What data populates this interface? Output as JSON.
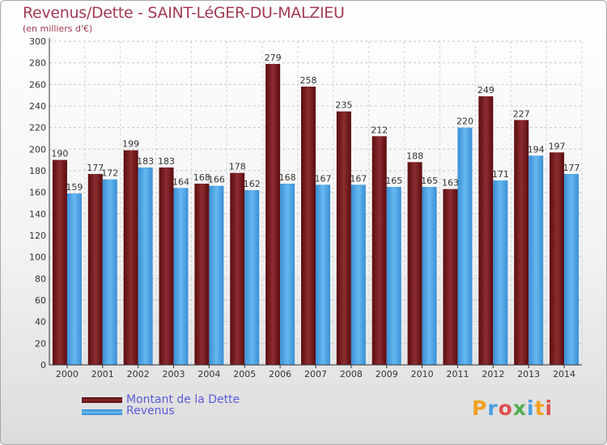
{
  "header": {
    "title": "Revenus/Dette - SAINT-LéGER-DU-MALZIEU",
    "subtitle": "(en milliers d'€)"
  },
  "legend": {
    "dette_label": "Montant de la Dette",
    "revenus_label": "Revenus"
  },
  "logo": {
    "text": "Proxiti"
  },
  "colors": {
    "dette": "#7a1a1d",
    "revenus": "#4fa8e8",
    "title": "#a23a52",
    "legend_text": "#5b5bd6"
  },
  "chart_data": {
    "type": "bar",
    "title": "Revenus/Dette - SAINT-LéGER-DU-MALZIEU",
    "ylabel": "(en milliers d'€)",
    "ylim": [
      0,
      300
    ],
    "ytick_step": 20,
    "grid": true,
    "legend_position": "bottom-left",
    "categories": [
      "2000",
      "2001",
      "2002",
      "2003",
      "2004",
      "2005",
      "2006",
      "2007",
      "2008",
      "2009",
      "2010",
      "2011",
      "2012",
      "2013",
      "2014"
    ],
    "series": [
      {
        "name": "Montant de la Dette",
        "values": [
          190,
          177,
          199,
          183,
          168,
          178,
          279,
          258,
          235,
          212,
          188,
          163,
          249,
          227,
          197
        ]
      },
      {
        "name": "Revenus",
        "values": [
          159,
          172,
          183,
          164,
          166,
          162,
          168,
          167,
          167,
          165,
          165,
          220,
          171,
          194,
          177
        ]
      }
    ]
  }
}
